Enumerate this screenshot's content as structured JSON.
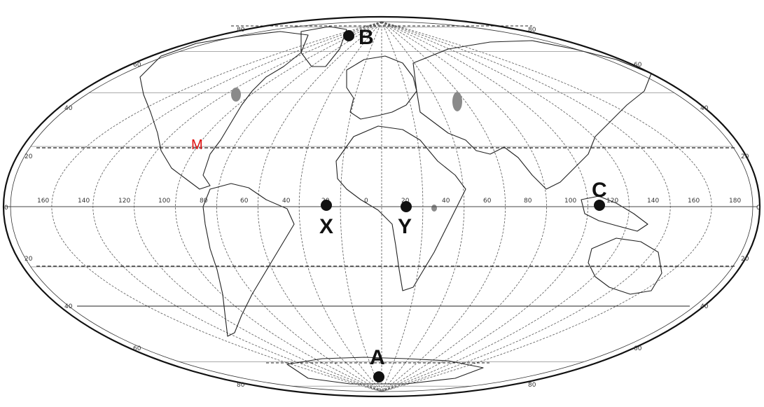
{
  "map": {
    "projection": "Mollweide",
    "colors": {
      "outline": "#111111",
      "grid": "#444444",
      "point": "#111111",
      "highlight_label": "#e01010"
    },
    "parallel_labels": {
      "north_80": "80",
      "north_60": "60",
      "north_40": "40",
      "north_20": "20",
      "equator": "0",
      "south_20": "20",
      "south_40": "40",
      "south_60": "60",
      "south_80": "80"
    },
    "meridian_labels": [
      "160",
      "140",
      "120",
      "100",
      "80",
      "60",
      "40",
      "20",
      "0",
      "20",
      "40",
      "60",
      "80",
      "100",
      "120",
      "140",
      "160",
      "180"
    ],
    "points": {
      "A": {
        "label": "A"
      },
      "B": {
        "label": "B"
      },
      "C": {
        "label": "C"
      },
      "X": {
        "label": "X"
      },
      "Y": {
        "label": "Y"
      }
    },
    "marker_M": {
      "label": "M"
    }
  }
}
